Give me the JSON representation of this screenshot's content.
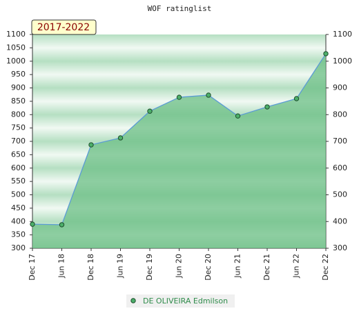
{
  "chart_data": {
    "type": "line",
    "title": "WOF ratinglist",
    "annotation": "2017-2022",
    "categories": [
      "Dec 17",
      "Jun 18",
      "Dec 18",
      "Jun 19",
      "Dec 19",
      "Jun 20",
      "Dec 20",
      "Jun 21",
      "Dec 21",
      "Jun 22",
      "Dec 22"
    ],
    "series": [
      {
        "name": "DE OLIVEIRA Edmilson",
        "color": "#5b9bd5",
        "marker_color": "#4caf6a",
        "fill": "#6cbf86",
        "values": [
          390,
          388,
          687,
          713,
          813,
          865,
          873,
          795,
          829,
          860,
          1028
        ]
      }
    ],
    "ylim": [
      300,
      1100
    ],
    "yticks": [
      300,
      350,
      400,
      450,
      500,
      550,
      600,
      650,
      700,
      750,
      800,
      850,
      900,
      950,
      1000,
      1050,
      1100
    ],
    "y2lim": [
      300,
      1100
    ],
    "y2ticks": [
      300,
      400,
      500,
      600,
      700,
      800,
      900,
      1000,
      1100
    ],
    "legend": "bottom"
  }
}
